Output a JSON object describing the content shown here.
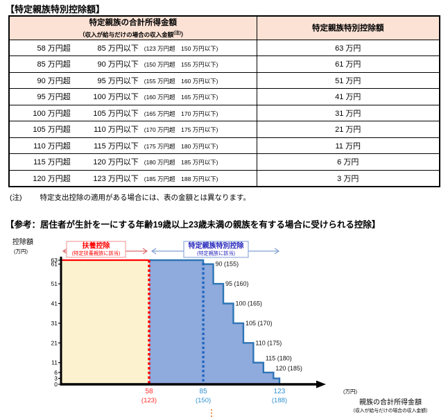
{
  "page": {
    "title1": "【特定親族特別控除額】",
    "note_label": "(注)",
    "note_text": "特定支出控除の適用がある場合には、表の金額とは異なります。",
    "title2": "【参考：居住者が生計を一にする年齢19歳以上23歳未満の親族を有する場合に受けられる控除】"
  },
  "table": {
    "header_bg": "#fbe2d5",
    "header": {
      "col1_main": "特定親族の合計所得金額",
      "col1_sub_main": "（収入が給与だけの場合の収入金額",
      "col1_sub_sup": "(注)",
      "col1_sub_close": "）",
      "col2": "特定親族特別控除額"
    },
    "rows": [
      {
        "lo": "58 万円超",
        "hi": "85 万円以下",
        "sub": "(123 万円超　150 万円以下)",
        "amount": "63 万円"
      },
      {
        "lo": "85 万円超",
        "hi": "90 万円以下",
        "sub": "(150 万円超　155 万円以下)",
        "amount": "61 万円"
      },
      {
        "lo": "90 万円超",
        "hi": "95 万円以下",
        "sub": "(155 万円超　160 万円以下)",
        "amount": "51 万円"
      },
      {
        "lo": "95 万円超",
        "hi": "100 万円以下",
        "sub": "(160 万円超　165 万円以下)",
        "amount": "41 万円"
      },
      {
        "lo": "100 万円超",
        "hi": "105 万円以下",
        "sub": "(165 万円超　170 万円以下)",
        "amount": "31 万円"
      },
      {
        "lo": "105 万円超",
        "hi": "110 万円以下",
        "sub": "(170 万円超　175 万円以下)",
        "amount": "21 万円"
      },
      {
        "lo": "110 万円超",
        "hi": "115 万円以下",
        "sub": "(175 万円超　180 万円以下)",
        "amount": "11 万円"
      },
      {
        "lo": "115 万円超",
        "hi": "120 万円以下",
        "sub": "(180 万円超　185 万円以下)",
        "amount": "6 万円"
      },
      {
        "lo": "120 万円超",
        "hi": "123 万円以下",
        "sub": "(185 万円超　188 万円以下)",
        "amount": "3 万円"
      }
    ]
  },
  "chart_data": {
    "type": "area",
    "title": "居住者が生計を一にする年齢19歳以上23歳未満の親族を有する場合に受けられる控除",
    "ylabel": "控除額",
    "y_unit": "(万円)",
    "x_unit": "(万円)",
    "xlabel": "親族の合計所得金額",
    "xlabel_sub": "（収入が給与だけの場合の収入金額）",
    "ylim": [
      0,
      63
    ],
    "y_ticks": [
      0,
      3,
      6,
      11,
      21,
      31,
      41,
      51,
      61,
      63
    ],
    "flat_region": {
      "x_end": 58,
      "value": 63
    },
    "steps": [
      {
        "from": 58,
        "to": 85,
        "value": 63
      },
      {
        "from": 85,
        "to": 90,
        "value": 61
      },
      {
        "from": 90,
        "to": 95,
        "value": 51
      },
      {
        "from": 95,
        "to": 100,
        "value": 41
      },
      {
        "from": 100,
        "to": 105,
        "value": 31
      },
      {
        "from": 105,
        "to": 110,
        "value": 21
      },
      {
        "from": 110,
        "to": 115,
        "value": 11
      },
      {
        "from": 115,
        "to": 120,
        "value": 6
      },
      {
        "from": 120,
        "to": 123,
        "value": 3
      }
    ],
    "step_labels": [
      {
        "x": 90,
        "level": 61,
        "text": "90 (155)"
      },
      {
        "x": 95,
        "level": 51,
        "text": "95 (160)"
      },
      {
        "x": 100,
        "level": 41,
        "text": "100 (165)"
      },
      {
        "x": 105,
        "level": 31,
        "text": "105 (170)"
      },
      {
        "x": 110,
        "level": 21,
        "text": "110 (175)"
      },
      {
        "x": 115,
        "level": 11,
        "text": "115 (180)"
      },
      {
        "x": 120,
        "level": 6,
        "text": "120 (185)"
      }
    ],
    "x_ticks": [
      {
        "x": 58,
        "label": "58",
        "sub": "(123)",
        "color": "#ff2a2a"
      },
      {
        "x": 85,
        "label": "85",
        "sub": "(150)",
        "color": "#2e8fd0"
      },
      {
        "x": 123,
        "label": "123",
        "sub": "(188)",
        "color": "#2e8fd0"
      }
    ],
    "markers": [
      {
        "x": 58,
        "color": "#ff0000"
      },
      {
        "x": 85,
        "color": "#2468c0"
      }
    ],
    "legend": [
      {
        "label": "扶養控除",
        "sub": "(特定扶養親族に該当)",
        "text_color": "#ff0000",
        "border_color": "#f2a2a2",
        "arrow_color": "#d96a6a",
        "span": [
          null,
          58
        ]
      },
      {
        "label": "特定親族特別控除",
        "sub": "(特定親族に該当)",
        "text_color": "#2222bb",
        "border_color": "#8faadc",
        "arrow_color": "#7f9fd0",
        "span": [
          58,
          123
        ]
      }
    ],
    "colors": {
      "flat_fill": "#fdf2cf",
      "flat_line": "#ff0000",
      "step_fill": "#8faadc",
      "step_line": "#2e75b6",
      "axis": "#000000",
      "stray_dots": "#ed7d31"
    }
  }
}
